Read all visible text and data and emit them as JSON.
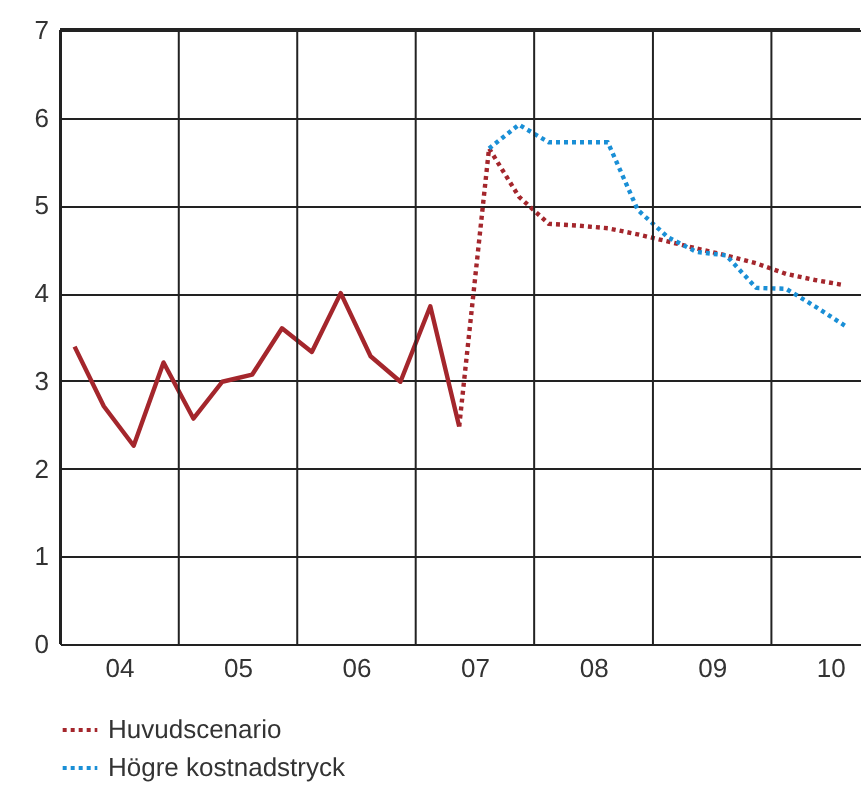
{
  "chart_data": {
    "type": "line",
    "xlim": [
      "2004-01-01",
      "2010-10-01"
    ],
    "ylim": [
      0,
      7
    ],
    "yticks": [
      0,
      1,
      2,
      3,
      4,
      5,
      6,
      7
    ],
    "xticks": [
      {
        "value": "2004-01-01",
        "label": null
      },
      {
        "value": "2004-07-01",
        "label": "04"
      },
      {
        "value": "2005-01-01",
        "label": null
      },
      {
        "value": "2005-07-01",
        "label": "05"
      },
      {
        "value": "2006-01-01",
        "label": null
      },
      {
        "value": "2006-07-01",
        "label": "06"
      },
      {
        "value": "2007-01-01",
        "label": null
      },
      {
        "value": "2007-07-01",
        "label": "07"
      },
      {
        "value": "2008-01-01",
        "label": null
      },
      {
        "value": "2008-07-01",
        "label": "08"
      },
      {
        "value": "2009-01-01",
        "label": null
      },
      {
        "value": "2009-07-01",
        "label": "09"
      },
      {
        "value": "2010-01-01",
        "label": null
      },
      {
        "value": "2010-07-01",
        "label": "10"
      }
    ],
    "grid": true,
    "legend": "bottom",
    "series": [
      {
        "color": "#a4262c",
        "line_style": "solid",
        "x": [
          "2004-02-15",
          "2004-05-15",
          "2004-08-15",
          "2004-11-15",
          "2005-02-15",
          "2005-05-15",
          "2005-08-15",
          "2005-11-15",
          "2006-02-15",
          "2006-05-15",
          "2006-08-15",
          "2006-11-15",
          "2007-02-15",
          "2007-05-15"
        ],
        "values": [
          3.39,
          2.71,
          2.26,
          3.21,
          2.57,
          2.99,
          3.07,
          3.6,
          3.33,
          4.0,
          3.28,
          2.99,
          3.85,
          2.48
        ]
      },
      {
        "name": "Huvudscenario",
        "color": "#a4262c",
        "line_style": "dotted",
        "x": [
          "2007-05-15",
          "2007-08-15",
          "2007-11-15",
          "2008-02-15",
          "2008-05-15",
          "2008-08-15",
          "2008-11-15",
          "2009-02-15",
          "2009-05-15",
          "2009-08-15",
          "2009-11-15",
          "2010-02-15",
          "2010-05-15",
          "2010-08-15"
        ],
        "values": [
          2.48,
          5.65,
          5.1,
          4.79,
          4.77,
          4.74,
          4.67,
          4.59,
          4.51,
          4.43,
          4.34,
          4.22,
          4.15,
          4.09
        ]
      },
      {
        "name": "Högre kostnadstryck",
        "color": "#1a8fd6",
        "line_style": "dotted",
        "x": [
          "2007-08-15",
          "2007-11-15",
          "2008-02-15",
          "2008-05-15",
          "2008-08-15",
          "2008-11-15",
          "2009-02-15",
          "2009-05-15",
          "2009-08-15",
          "2009-11-15",
          "2010-02-15",
          "2010-05-15",
          "2010-08-15"
        ],
        "values": [
          5.65,
          5.92,
          5.72,
          5.72,
          5.72,
          4.95,
          4.64,
          4.47,
          4.43,
          4.06,
          4.05,
          3.85,
          3.63
        ]
      }
    ]
  }
}
